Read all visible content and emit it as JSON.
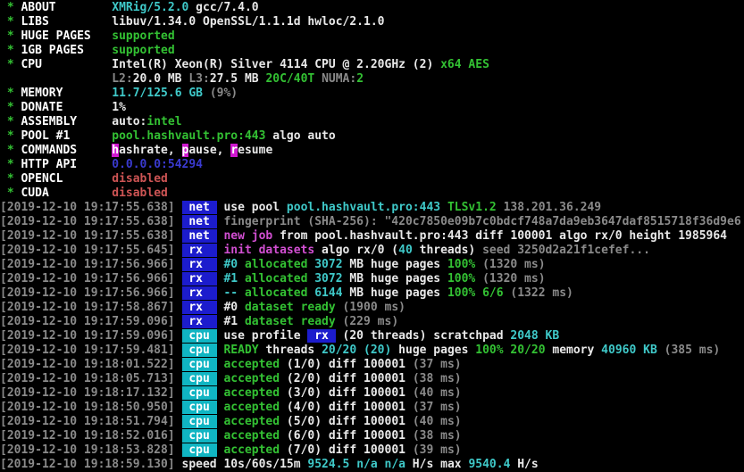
{
  "app": {
    "name": "XMRig miner console",
    "title": "XMRig/5.2.0 terminal output"
  },
  "palette": {
    "w": {
      "fg": "#e9e9e9"
    },
    "wb": {
      "fg": "#ffffff"
    },
    "g": {
      "fg": "#33c133"
    },
    "c": {
      "fg": "#3fc9c9"
    },
    "m": {
      "fg": "#d24fd2"
    },
    "gy": {
      "fg": "#8a8a8a"
    },
    "b": {
      "fg": "#3a3ad0"
    },
    "r": {
      "fg": "#cd5454"
    },
    "tb": {
      "fg": "#ffffff",
      "bg": "#1c1ccd"
    },
    "tc": {
      "fg": "#ffffff",
      "bg": "#10b5c3"
    },
    "hm": {
      "fg": "#ffffff",
      "bg": "#d018d0"
    }
  },
  "lines": [
    {
      "segs": [
        {
          "t": " * ",
          "c": "g"
        },
        {
          "t": "ABOUT",
          "c": "wb",
          "n": "field-label"
        },
        {
          "t": "        ",
          "c": "w"
        },
        {
          "t": "XMRig/5.2.0",
          "c": "c"
        },
        {
          "t": " gcc/7.4.0",
          "c": "w"
        }
      ]
    },
    {
      "segs": [
        {
          "t": " * ",
          "c": "g"
        },
        {
          "t": "LIBS",
          "c": "wb",
          "n": "field-label"
        },
        {
          "t": "         ",
          "c": "w"
        },
        {
          "t": "libuv/1.34.0 OpenSSL/1.1.1d hwloc/2.1.0",
          "c": "w"
        }
      ]
    },
    {
      "segs": [
        {
          "t": " * ",
          "c": "g"
        },
        {
          "t": "HUGE PAGES",
          "c": "wb",
          "n": "field-label"
        },
        {
          "t": "   ",
          "c": "w"
        },
        {
          "t": "supported",
          "c": "g"
        }
      ]
    },
    {
      "segs": [
        {
          "t": " * ",
          "c": "g"
        },
        {
          "t": "1GB PAGES",
          "c": "wb",
          "n": "field-label"
        },
        {
          "t": "    ",
          "c": "w"
        },
        {
          "t": "supported",
          "c": "g"
        }
      ]
    },
    {
      "segs": [
        {
          "t": " * ",
          "c": "g"
        },
        {
          "t": "CPU",
          "c": "wb",
          "n": "field-label"
        },
        {
          "t": "          ",
          "c": "w"
        },
        {
          "t": "Intel(R) Xeon(R) Silver 4114 CPU @ 2.20GHz (2) ",
          "c": "w"
        },
        {
          "t": "x64 AES",
          "c": "g"
        }
      ]
    },
    {
      "segs": [
        {
          "t": "                ",
          "c": "w"
        },
        {
          "t": "L2:",
          "c": "gy"
        },
        {
          "t": "20.0 MB",
          "c": "w"
        },
        {
          "t": " ",
          "c": "w"
        },
        {
          "t": "L3:",
          "c": "gy"
        },
        {
          "t": "27.5 MB",
          "c": "w"
        },
        {
          "t": " ",
          "c": "w"
        },
        {
          "t": "20C/40T",
          "c": "g"
        },
        {
          "t": " ",
          "c": "w"
        },
        {
          "t": "NUMA:",
          "c": "gy"
        },
        {
          "t": "2",
          "c": "g"
        }
      ]
    },
    {
      "segs": [
        {
          "t": " * ",
          "c": "g"
        },
        {
          "t": "MEMORY",
          "c": "wb",
          "n": "field-label"
        },
        {
          "t": "       ",
          "c": "w"
        },
        {
          "t": "11.7/125.6 GB",
          "c": "c"
        },
        {
          "t": " ",
          "c": "w"
        },
        {
          "t": "(9%)",
          "c": "gy"
        }
      ]
    },
    {
      "segs": [
        {
          "t": " * ",
          "c": "g"
        },
        {
          "t": "DONATE",
          "c": "wb",
          "n": "field-label"
        },
        {
          "t": "       ",
          "c": "w"
        },
        {
          "t": "1%",
          "c": "w"
        }
      ]
    },
    {
      "segs": [
        {
          "t": " * ",
          "c": "g"
        },
        {
          "t": "ASSEMBLY",
          "c": "wb",
          "n": "field-label"
        },
        {
          "t": "     ",
          "c": "w"
        },
        {
          "t": "auto:",
          "c": "w"
        },
        {
          "t": "intel",
          "c": "g"
        }
      ]
    },
    {
      "segs": [
        {
          "t": " * ",
          "c": "g"
        },
        {
          "t": "POOL #1",
          "c": "wb",
          "n": "field-label"
        },
        {
          "t": "      ",
          "c": "w"
        },
        {
          "t": "pool.hashvault.pro:443",
          "c": "g"
        },
        {
          "t": " algo auto",
          "c": "w"
        }
      ]
    },
    {
      "segs": [
        {
          "t": " * ",
          "c": "g"
        },
        {
          "t": "COMMANDS",
          "c": "wb",
          "n": "field-label"
        },
        {
          "t": "     ",
          "c": "w"
        },
        {
          "t": "h",
          "c": "hm",
          "n": "command-hotkey"
        },
        {
          "t": "ashrate, ",
          "c": "w"
        },
        {
          "t": "p",
          "c": "hm",
          "n": "command-hotkey"
        },
        {
          "t": "ause, ",
          "c": "w"
        },
        {
          "t": "r",
          "c": "hm",
          "n": "command-hotkey"
        },
        {
          "t": "esume",
          "c": "w"
        }
      ]
    },
    {
      "segs": [
        {
          "t": " * ",
          "c": "g"
        },
        {
          "t": "HTTP API",
          "c": "wb",
          "n": "field-label"
        },
        {
          "t": "     ",
          "c": "w"
        },
        {
          "t": "0.0.0.0:54294",
          "c": "b"
        }
      ]
    },
    {
      "segs": [
        {
          "t": " * ",
          "c": "g"
        },
        {
          "t": "OPENCL",
          "c": "wb",
          "n": "field-label"
        },
        {
          "t": "       ",
          "c": "w"
        },
        {
          "t": "disabled",
          "c": "r"
        }
      ]
    },
    {
      "segs": [
        {
          "t": " * ",
          "c": "g"
        },
        {
          "t": "CUDA",
          "c": "wb",
          "n": "field-label"
        },
        {
          "t": "         ",
          "c": "w"
        },
        {
          "t": "disabled",
          "c": "r"
        }
      ]
    },
    {
      "segs": [
        {
          "t": "[2019-12-10 19:17:55.638] ",
          "c": "gy",
          "n": "timestamp"
        },
        {
          "t": " net ",
          "c": "tb",
          "n": "log-tag-net"
        },
        {
          "t": " use pool ",
          "c": "w"
        },
        {
          "t": "pool.hashvault.pro:443",
          "c": "c"
        },
        {
          "t": " ",
          "c": "w"
        },
        {
          "t": "TLSv1.2",
          "c": "g"
        },
        {
          "t": " ",
          "c": "w"
        },
        {
          "t": "138.201.36.249",
          "c": "gy"
        }
      ]
    },
    {
      "segs": [
        {
          "t": "[2019-12-10 19:17:55.638] ",
          "c": "gy",
          "n": "timestamp"
        },
        {
          "t": " net ",
          "c": "tb",
          "n": "log-tag-net"
        },
        {
          "t": " ",
          "c": "w"
        },
        {
          "t": "fingerprint (SHA-256): \"420c7850e09b7c0bdcf748a7da9eb3647daf8515718f36d9e6",
          "c": "gy"
        }
      ]
    },
    {
      "segs": [
        {
          "t": "[2019-12-10 19:17:55.638] ",
          "c": "gy",
          "n": "timestamp"
        },
        {
          "t": " net ",
          "c": "tb",
          "n": "log-tag-net"
        },
        {
          "t": " ",
          "c": "w"
        },
        {
          "t": "new job",
          "c": "m"
        },
        {
          "t": " from pool.hashvault.pro:443 diff 100001 algo rx/0 height 1985964",
          "c": "w"
        }
      ]
    },
    {
      "segs": [
        {
          "t": "[2019-12-10 19:17:55.645] ",
          "c": "gy",
          "n": "timestamp"
        },
        {
          "t": " rx  ",
          "c": "tb",
          "n": "log-tag-rx"
        },
        {
          "t": " ",
          "c": "w"
        },
        {
          "t": "init datasets",
          "c": "m"
        },
        {
          "t": " algo rx/0 (",
          "c": "w"
        },
        {
          "t": "40",
          "c": "c"
        },
        {
          "t": " threads) ",
          "c": "w"
        },
        {
          "t": "seed 3250d2a21f1cefef...",
          "c": "gy"
        }
      ]
    },
    {
      "segs": [
        {
          "t": "[2019-12-10 19:17:56.966] ",
          "c": "gy",
          "n": "timestamp"
        },
        {
          "t": " rx  ",
          "c": "tb",
          "n": "log-tag-rx"
        },
        {
          "t": " ",
          "c": "w"
        },
        {
          "t": "#0",
          "c": "c"
        },
        {
          "t": " ",
          "c": "w"
        },
        {
          "t": "allocated",
          "c": "g"
        },
        {
          "t": " ",
          "c": "w"
        },
        {
          "t": "3072",
          "c": "c"
        },
        {
          "t": " MB huge pages ",
          "c": "w"
        },
        {
          "t": "100%",
          "c": "g"
        },
        {
          "t": " ",
          "c": "w"
        },
        {
          "t": "(1320 ms)",
          "c": "gy"
        }
      ]
    },
    {
      "segs": [
        {
          "t": "[2019-12-10 19:17:56.966] ",
          "c": "gy",
          "n": "timestamp"
        },
        {
          "t": " rx  ",
          "c": "tb",
          "n": "log-tag-rx"
        },
        {
          "t": " ",
          "c": "w"
        },
        {
          "t": "#1",
          "c": "c"
        },
        {
          "t": " ",
          "c": "w"
        },
        {
          "t": "allocated",
          "c": "g"
        },
        {
          "t": " ",
          "c": "w"
        },
        {
          "t": "3072",
          "c": "c"
        },
        {
          "t": " MB huge pages ",
          "c": "w"
        },
        {
          "t": "100%",
          "c": "g"
        },
        {
          "t": " ",
          "c": "w"
        },
        {
          "t": "(1320 ms)",
          "c": "gy"
        }
      ]
    },
    {
      "segs": [
        {
          "t": "[2019-12-10 19:17:56.966] ",
          "c": "gy",
          "n": "timestamp"
        },
        {
          "t": " rx  ",
          "c": "tb",
          "n": "log-tag-rx"
        },
        {
          "t": " ",
          "c": "w"
        },
        {
          "t": "--",
          "c": "c"
        },
        {
          "t": " ",
          "c": "w"
        },
        {
          "t": "allocated",
          "c": "g"
        },
        {
          "t": " ",
          "c": "w"
        },
        {
          "t": "6144",
          "c": "c"
        },
        {
          "t": " MB huge pages ",
          "c": "w"
        },
        {
          "t": "100%",
          "c": "g"
        },
        {
          "t": " ",
          "c": "w"
        },
        {
          "t": "6/6",
          "c": "g"
        },
        {
          "t": " ",
          "c": "w"
        },
        {
          "t": "(1322 ms)",
          "c": "gy"
        }
      ]
    },
    {
      "segs": [
        {
          "t": "[2019-12-10 19:17:58.867] ",
          "c": "gy",
          "n": "timestamp"
        },
        {
          "t": " rx  ",
          "c": "tb",
          "n": "log-tag-rx"
        },
        {
          "t": " #0 ",
          "c": "w"
        },
        {
          "t": "dataset ready",
          "c": "g"
        },
        {
          "t": " ",
          "c": "w"
        },
        {
          "t": "(1900 ms)",
          "c": "gy"
        }
      ]
    },
    {
      "segs": [
        {
          "t": "[2019-12-10 19:17:59.096] ",
          "c": "gy",
          "n": "timestamp"
        },
        {
          "t": " rx  ",
          "c": "tb",
          "n": "log-tag-rx"
        },
        {
          "t": " #1 ",
          "c": "w"
        },
        {
          "t": "dataset ready",
          "c": "g"
        },
        {
          "t": " ",
          "c": "w"
        },
        {
          "t": "(229 ms)",
          "c": "gy"
        }
      ]
    },
    {
      "segs": [
        {
          "t": "[2019-12-10 19:17:59.096] ",
          "c": "gy",
          "n": "timestamp"
        },
        {
          "t": " cpu ",
          "c": "tc",
          "n": "log-tag-cpu"
        },
        {
          "t": " use profile ",
          "c": "w"
        },
        {
          "t": " rx ",
          "c": "tb",
          "n": "profile-badge"
        },
        {
          "t": " (20 threads) scratchpad ",
          "c": "w"
        },
        {
          "t": "2048 KB",
          "c": "c"
        }
      ]
    },
    {
      "segs": [
        {
          "t": "[2019-12-10 19:17:59.481] ",
          "c": "gy",
          "n": "timestamp"
        },
        {
          "t": " cpu ",
          "c": "tc",
          "n": "log-tag-cpu"
        },
        {
          "t": " ",
          "c": "w"
        },
        {
          "t": "READY",
          "c": "g"
        },
        {
          "t": " threads ",
          "c": "w"
        },
        {
          "t": "20/20 (20)",
          "c": "c"
        },
        {
          "t": " huge pages ",
          "c": "w"
        },
        {
          "t": "100%",
          "c": "g"
        },
        {
          "t": " ",
          "c": "w"
        },
        {
          "t": "20/20",
          "c": "g"
        },
        {
          "t": " memory ",
          "c": "w"
        },
        {
          "t": "40960 KB",
          "c": "c"
        },
        {
          "t": " ",
          "c": "w"
        },
        {
          "t": "(385 ms)",
          "c": "gy"
        }
      ]
    },
    {
      "segs": [
        {
          "t": "[2019-12-10 19:18:01.522] ",
          "c": "gy",
          "n": "timestamp"
        },
        {
          "t": " cpu ",
          "c": "tc",
          "n": "log-tag-cpu"
        },
        {
          "t": " ",
          "c": "w"
        },
        {
          "t": "accepted",
          "c": "g"
        },
        {
          "t": " (1/0) diff 100001 ",
          "c": "w"
        },
        {
          "t": "(37 ms)",
          "c": "gy"
        }
      ]
    },
    {
      "segs": [
        {
          "t": "[2019-12-10 19:18:05.713] ",
          "c": "gy",
          "n": "timestamp"
        },
        {
          "t": " cpu ",
          "c": "tc",
          "n": "log-tag-cpu"
        },
        {
          "t": " ",
          "c": "w"
        },
        {
          "t": "accepted",
          "c": "g"
        },
        {
          "t": " (2/0) diff 100001 ",
          "c": "w"
        },
        {
          "t": "(38 ms)",
          "c": "gy"
        }
      ]
    },
    {
      "segs": [
        {
          "t": "[2019-12-10 19:18:17.132] ",
          "c": "gy",
          "n": "timestamp"
        },
        {
          "t": " cpu ",
          "c": "tc",
          "n": "log-tag-cpu"
        },
        {
          "t": " ",
          "c": "w"
        },
        {
          "t": "accepted",
          "c": "g"
        },
        {
          "t": " (3/0) diff 100001 ",
          "c": "w"
        },
        {
          "t": "(40 ms)",
          "c": "gy"
        }
      ]
    },
    {
      "segs": [
        {
          "t": "[2019-12-10 19:18:50.950] ",
          "c": "gy",
          "n": "timestamp"
        },
        {
          "t": " cpu ",
          "c": "tc",
          "n": "log-tag-cpu"
        },
        {
          "t": " ",
          "c": "w"
        },
        {
          "t": "accepted",
          "c": "g"
        },
        {
          "t": " (4/0) diff 100001 ",
          "c": "w"
        },
        {
          "t": "(37 ms)",
          "c": "gy"
        }
      ]
    },
    {
      "segs": [
        {
          "t": "[2019-12-10 19:18:51.794] ",
          "c": "gy",
          "n": "timestamp"
        },
        {
          "t": " cpu ",
          "c": "tc",
          "n": "log-tag-cpu"
        },
        {
          "t": " ",
          "c": "w"
        },
        {
          "t": "accepted",
          "c": "g"
        },
        {
          "t": " (5/0) diff 100001 ",
          "c": "w"
        },
        {
          "t": "(40 ms)",
          "c": "gy"
        }
      ]
    },
    {
      "segs": [
        {
          "t": "[2019-12-10 19:18:52.016] ",
          "c": "gy",
          "n": "timestamp"
        },
        {
          "t": " cpu ",
          "c": "tc",
          "n": "log-tag-cpu"
        },
        {
          "t": " ",
          "c": "w"
        },
        {
          "t": "accepted",
          "c": "g"
        },
        {
          "t": " (6/0) diff 100001 ",
          "c": "w"
        },
        {
          "t": "(38 ms)",
          "c": "gy"
        }
      ]
    },
    {
      "segs": [
        {
          "t": "[2019-12-10 19:18:53.828] ",
          "c": "gy",
          "n": "timestamp"
        },
        {
          "t": " cpu ",
          "c": "tc",
          "n": "log-tag-cpu"
        },
        {
          "t": " ",
          "c": "w"
        },
        {
          "t": "accepted",
          "c": "g"
        },
        {
          "t": " (7/0) diff 100001 ",
          "c": "w"
        },
        {
          "t": "(39 ms)",
          "c": "gy"
        }
      ]
    },
    {
      "segs": [
        {
          "t": "[2019-12-10 19:18:59.130] ",
          "c": "gy",
          "n": "timestamp"
        },
        {
          "t": "speed 10s/60s/15m ",
          "c": "w"
        },
        {
          "t": "9524.5",
          "c": "c"
        },
        {
          "t": " ",
          "c": "w"
        },
        {
          "t": "n/a n/a",
          "c": "c"
        },
        {
          "t": " H/s max ",
          "c": "w"
        },
        {
          "t": "9540.4",
          "c": "c"
        },
        {
          "t": " H/s",
          "c": "w"
        }
      ]
    }
  ]
}
